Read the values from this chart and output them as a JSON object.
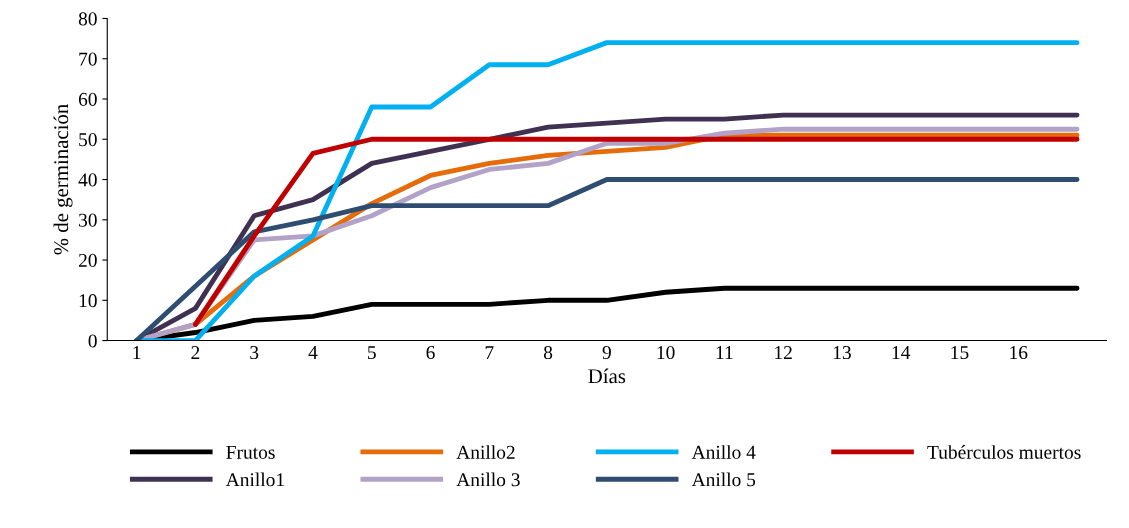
{
  "chart_data": {
    "type": "line",
    "xlabel": "Días",
    "ylabel": "% de germinación",
    "categories": [
      "1",
      "2",
      "3",
      "4",
      "5",
      "6",
      "7",
      "8",
      "9",
      "10",
      "11",
      "12",
      "13",
      "14",
      "15",
      "16",
      null
    ],
    "ylim": [
      0,
      80
    ],
    "yticks": [
      0,
      10,
      20,
      30,
      40,
      50,
      60,
      70,
      80
    ],
    "grid": false,
    "legend": "bottom",
    "marker": "none",
    "line_style": "solid",
    "series": [
      {
        "name": "Frutos",
        "color": "#000000",
        "values": [
          0,
          2,
          5,
          6,
          9,
          9,
          9,
          10,
          10,
          12,
          13,
          13,
          13,
          13,
          13,
          13,
          13
        ]
      },
      {
        "name": "Anillo1",
        "color": "#403152",
        "values": [
          0,
          8,
          31,
          35,
          44,
          47,
          50,
          53,
          54,
          55,
          55,
          56,
          56,
          56,
          56,
          56,
          56
        ]
      },
      {
        "name": "Anillo2",
        "color": "#e46c0a",
        "values": [
          0,
          4,
          16,
          25,
          34,
          41,
          44,
          46,
          47,
          48,
          51,
          51,
          51,
          51,
          51,
          51,
          51
        ]
      },
      {
        "name": "Anillo 3",
        "color": "#b3a2c7",
        "values": [
          0,
          4,
          25,
          26,
          31,
          38,
          42.5,
          44,
          49,
          49,
          51.5,
          52.5,
          52.5,
          52.5,
          52.5,
          52.5,
          52.5
        ]
      },
      {
        "name": "Anillo 4",
        "color": "#00b0f0",
        "values": [
          0,
          0,
          16,
          26,
          58,
          58,
          68.5,
          68.5,
          74,
          74,
          74,
          74,
          74,
          74,
          74,
          74,
          74
        ]
      },
      {
        "name": "Anillo 5",
        "color": "#2e4d70",
        "values": [
          0,
          13.5,
          27,
          30,
          33.5,
          33.5,
          33.5,
          33.5,
          40,
          40,
          40,
          40,
          40,
          40,
          40,
          40,
          40
        ]
      },
      {
        "name": "Tubérculos muertos",
        "color": "#c00000",
        "values": [
          null,
          4,
          26,
          46.5,
          50,
          50,
          50,
          50,
          50,
          50,
          50,
          50,
          50,
          50,
          50,
          50,
          50
        ]
      }
    ]
  }
}
